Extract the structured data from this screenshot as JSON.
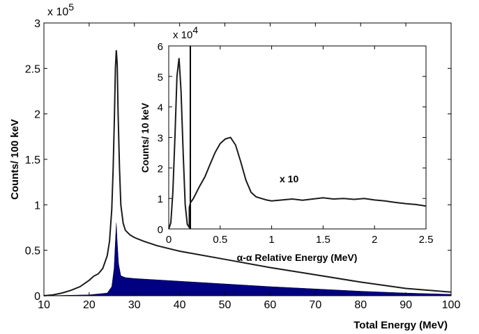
{
  "chart_data": [
    {
      "type": "line",
      "xlabel": "Total Energy (MeV)",
      "ylabel": "Counts/ 100 keV",
      "xlim": [
        10,
        100
      ],
      "ylim": [
        0,
        300000
      ],
      "y_multiplier_label": "x 10",
      "y_multiplier_exp": "5",
      "xticks": [
        "10",
        "20",
        "30",
        "40",
        "50",
        "60",
        "70",
        "80",
        "90",
        "100"
      ],
      "yticks": [
        "0",
        "0.5",
        "1",
        "1.5",
        "2",
        "2.5",
        "3"
      ],
      "series": [
        {
          "style": "outline",
          "color": "#1a1a1a",
          "x": [
            10,
            12,
            14,
            16,
            18,
            20,
            21,
            22,
            23,
            24,
            24.5,
            25,
            25.3,
            25.6,
            25.8,
            26,
            26.2,
            26.4,
            26.7,
            27,
            27.5,
            28,
            29,
            30,
            32,
            35,
            40,
            50,
            60,
            70,
            80,
            90,
            100
          ],
          "y": [
            0,
            1000,
            3000,
            6000,
            10000,
            17000,
            21500,
            24000,
            30000,
            44000,
            60000,
            95000,
            140000,
            200000,
            250000,
            270000,
            255000,
            200000,
            140000,
            100000,
            80000,
            72000,
            67000,
            64000,
            60000,
            55000,
            49000,
            40000,
            31000,
            23000,
            15000,
            8000,
            4000
          ]
        },
        {
          "style": "filled",
          "color": "#000080",
          "x": [
            10,
            20,
            24,
            25,
            25.5,
            25.8,
            26,
            26.2,
            26.5,
            27,
            28,
            30,
            40,
            50,
            60,
            70,
            80,
            90,
            100
          ],
          "y": [
            0,
            1000,
            3000,
            10000,
            30000,
            60000,
            80000,
            60000,
            35000,
            22000,
            20000,
            19000,
            16000,
            13000,
            10000,
            7500,
            5000,
            3000,
            1500
          ]
        }
      ]
    },
    {
      "type": "line",
      "xlabel": "α-α Relative Energy (MeV)",
      "ylabel": "Counts/ 10 keV",
      "xlim": [
        0,
        2.5
      ],
      "ylim": [
        0,
        60000
      ],
      "y_multiplier_label": "x 10",
      "y_multiplier_exp": "4",
      "annotation": "x 10",
      "xticks": [
        "0",
        "0.5",
        "1",
        "1.5",
        "2",
        "2.5"
      ],
      "yticks": [
        "0",
        "1",
        "2",
        "3",
        "4",
        "5",
        "6"
      ],
      "series": [
        {
          "style": "line",
          "color": "#1a1a1a",
          "x": [
            0,
            0.02,
            0.04,
            0.06,
            0.08,
            0.1,
            0.12,
            0.14,
            0.16,
            0.18,
            0.2,
            0.2,
            0.21,
            0.24,
            0.3,
            0.35,
            0.4,
            0.45,
            0.5,
            0.55,
            0.6,
            0.65,
            0.7,
            0.75,
            0.8,
            0.85,
            0.9,
            0.95,
            1.0,
            1.1,
            1.2,
            1.3,
            1.4,
            1.5,
            1.6,
            1.7,
            1.8,
            1.9,
            2.0,
            2.1,
            2.2,
            2.3,
            2.4,
            2.5
          ],
          "y": [
            0,
            2000,
            12000,
            30000,
            50000,
            56000,
            45000,
            25000,
            8000,
            1500,
            500,
            7000,
            8500,
            10000,
            14000,
            17000,
            21000,
            25000,
            28000,
            29500,
            30000,
            27500,
            22000,
            16000,
            12000,
            10500,
            10000,
            9500,
            9200,
            9500,
            9800,
            9400,
            9800,
            10200,
            9800,
            10000,
            9700,
            10000,
            9500,
            9200,
            8700,
            8300,
            8000,
            7500
          ]
        }
      ],
      "divider_x": 0.21
    }
  ]
}
